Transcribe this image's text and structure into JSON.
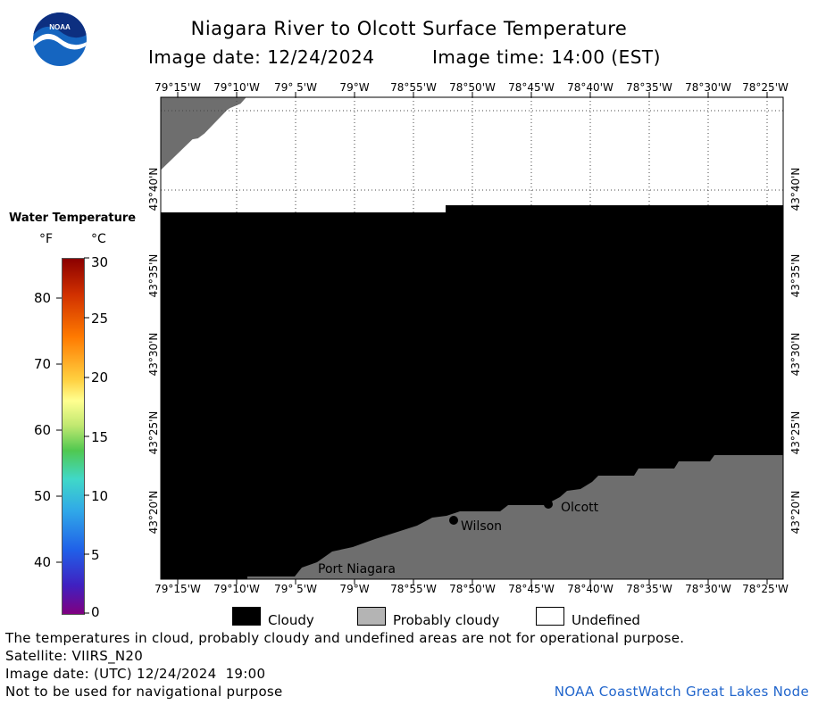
{
  "header": {
    "title": "Niagara River to Olcott Surface Temperature",
    "image_date_label": "Image date: 12/24/2024",
    "image_time_label": "Image time: 14:00 (EST)"
  },
  "logo": {
    "text": "NOAA"
  },
  "colors": {
    "cloudy": "#000000",
    "probably_cloudy": "#6e6e6e",
    "undefined": "#ffffff",
    "credit": "#2266cc"
  },
  "map": {
    "lon_labels": [
      "79°15'W",
      "79°10'W",
      "79° 5'W",
      "79°W",
      "78°55'W",
      "78°50'W",
      "78°45'W",
      "78°40'W",
      "78°35'W",
      "78°30'W",
      "78°25'W"
    ],
    "lat_labels": [
      "43°40'N",
      "43°35'N",
      "43°30'N",
      "43°25'N",
      "43°20'N"
    ],
    "places": [
      {
        "name": "Port Niagara"
      },
      {
        "name": "Wilson"
      },
      {
        "name": "Olcott"
      }
    ]
  },
  "scale": {
    "title": "Water Temperature",
    "unit_f": "°F",
    "unit_c": "°C",
    "f_ticks": [
      "80",
      "70",
      "60",
      "50",
      "40"
    ],
    "c_ticks": [
      "30",
      "25",
      "20",
      "15",
      "10",
      "5",
      "0"
    ]
  },
  "legend": {
    "cloudy": "Cloudy",
    "probably_cloudy": "Probably cloudy",
    "undefined": "Undefined"
  },
  "footer": {
    "line1": "The temperatures in cloud, probably cloudy and undefined areas are not for operational purpose.",
    "line2": "Satellite: VIIRS_N20",
    "line3": "Image date: (UTC) 12/24/2024  19:00",
    "line4": "Not to be used for navigational purpose",
    "credit": "NOAA CoastWatch Great Lakes Node"
  }
}
